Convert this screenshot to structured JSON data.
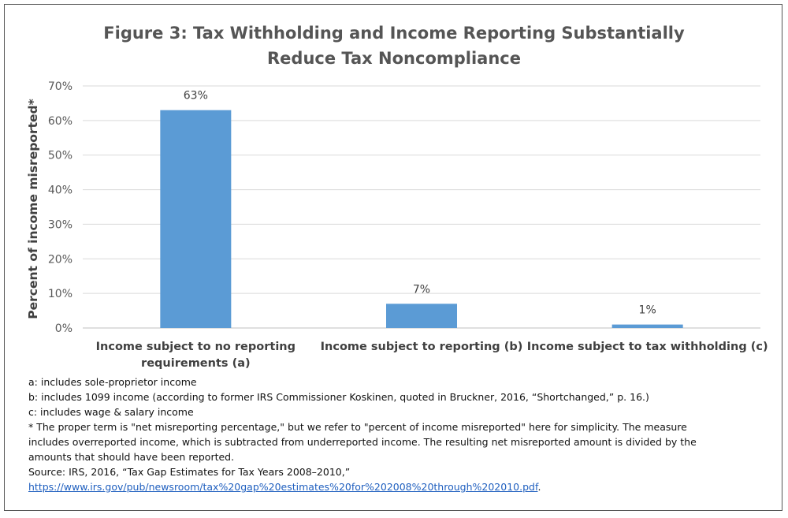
{
  "chart_data": {
    "type": "bar",
    "title_lines": [
      "Figure 3: Tax Withholding and Income Reporting Substantially",
      "Reduce Tax Noncompliance"
    ],
    "ylabel": "Percent of income misreported*",
    "ylim": [
      0,
      70
    ],
    "yticks": [
      "0%",
      "10%",
      "20%",
      "30%",
      "40%",
      "50%",
      "60%",
      "70%"
    ],
    "ytick_values": [
      0,
      10,
      20,
      30,
      40,
      50,
      60,
      70
    ],
    "categories": [
      [
        "Income subject to no reporting",
        "requirements (a)"
      ],
      [
        "Income subject to reporting (b)"
      ],
      [
        "Income subject to tax withholding (c)"
      ]
    ],
    "values": [
      63,
      7,
      1
    ],
    "data_labels": [
      "63%",
      "7%",
      "1%"
    ],
    "bar_color": "#5b9bd5",
    "grid": true,
    "legend": "none"
  },
  "notes": {
    "a": "a: includes sole-proprietor income",
    "b": "b: includes 1099 income (according to former IRS Commissioner Koskinen, quoted in Bruckner, 2016, “Shortchanged,” p. 16.)",
    "c": "c: includes wage & salary income",
    "star_lines": [
      "* The proper term is \"net misreporting percentage,\" but we refer to \"percent of income misreported\" here for simplicity. The measure",
      "includes overreported income, which is subtracted from underreported income. The resulting net misreported amount is divided by the",
      "amounts that should have been reported."
    ],
    "source": "Source: IRS, 2016, “Tax Gap Estimates for Tax Years 2008–2010,”",
    "link": "https://www.irs.gov/pub/newsroom/tax%20gap%20estimates%20for%202008%20through%202010.pdf",
    "link_suffix": "."
  }
}
